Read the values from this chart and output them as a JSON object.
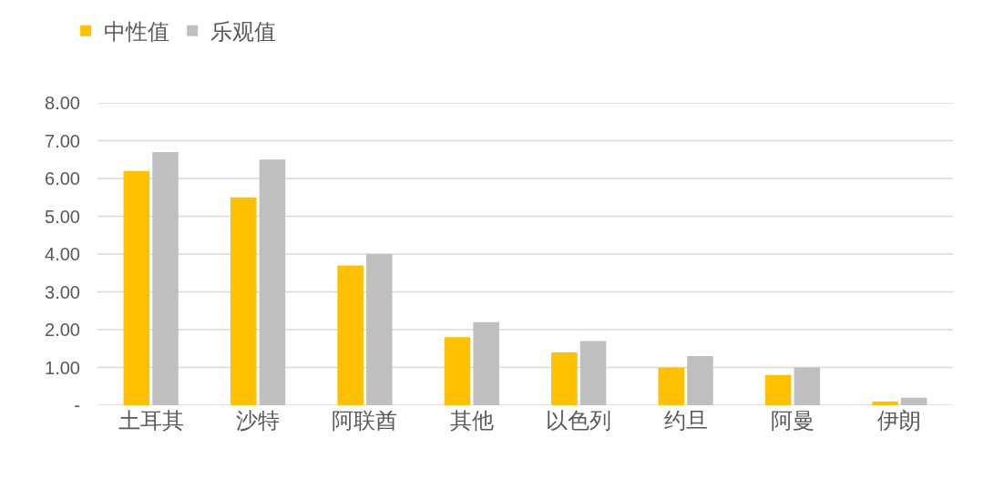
{
  "chart_data": {
    "type": "bar",
    "categories": [
      "土耳其",
      "沙特",
      "阿联酋",
      "其他",
      "以色列",
      "约旦",
      "阿曼",
      "伊朗"
    ],
    "series": [
      {
        "name": "中性值",
        "color": "#ffc000",
        "values": [
          6.2,
          5.5,
          3.7,
          1.8,
          1.4,
          1.0,
          0.8,
          0.1
        ]
      },
      {
        "name": "乐观值",
        "color": "#bfbfbf",
        "values": [
          6.7,
          6.5,
          4.0,
          2.2,
          1.7,
          1.3,
          1.0,
          0.2
        ]
      }
    ],
    "ylim": [
      0,
      8
    ],
    "yticks": [
      {
        "value": 0,
        "label": "-"
      },
      {
        "value": 1,
        "label": "1.00"
      },
      {
        "value": 2,
        "label": "2.00"
      },
      {
        "value": 3,
        "label": "3.00"
      },
      {
        "value": 4,
        "label": "4.00"
      },
      {
        "value": 5,
        "label": "5.00"
      },
      {
        "value": 6,
        "label": "6.00"
      },
      {
        "value": 7,
        "label": "7.00"
      },
      {
        "value": 8,
        "label": "8.00"
      }
    ],
    "grid": "y",
    "legend": "top left"
  }
}
